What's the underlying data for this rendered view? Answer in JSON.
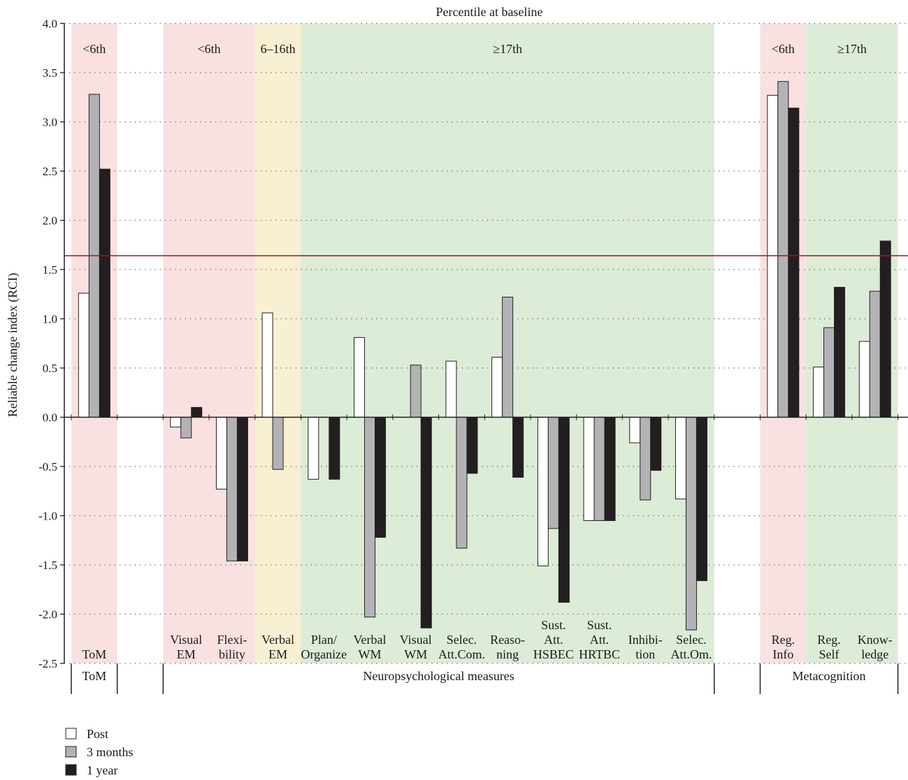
{
  "chart_data": {
    "type": "bar",
    "title": "Percentile at baseline",
    "ylabel": "Reliable change index (RCI)",
    "ylim": [
      -2.5,
      4.0
    ],
    "yticks": [
      4.0,
      3.5,
      3.0,
      2.5,
      2.0,
      1.5,
      1.0,
      0.5,
      0.0,
      -0.5,
      -1.0,
      -1.5,
      -2.0,
      -2.5
    ],
    "ytick_labels": [
      "4.0",
      "3.5",
      "3.0",
      "2.5",
      "2.0",
      "1.5",
      "1.0",
      "0.5",
      "0.0",
      "-0.5",
      "-1.0",
      "-1.5",
      "-2.0",
      "-2.5"
    ],
    "threshold": 1.64,
    "grid": "dotted horizontal",
    "legend_position": "bottom-left",
    "categories": [
      {
        "lines": [
          "ToM"
        ]
      },
      {
        "lines": []
      },
      {
        "lines": [
          "Visual",
          "EM"
        ]
      },
      {
        "lines": [
          "Flexi-",
          "bility"
        ]
      },
      {
        "lines": [
          "Verbal",
          "EM"
        ]
      },
      {
        "lines": [
          "Plan/",
          "Organize"
        ]
      },
      {
        "lines": [
          "Verbal",
          "WM"
        ]
      },
      {
        "lines": [
          "Visual",
          "WM"
        ]
      },
      {
        "lines": [
          "Selec.",
          "Att.Com."
        ]
      },
      {
        "lines": [
          "Reaso-",
          "ning"
        ]
      },
      {
        "lines": [
          "Sust.",
          "Att.",
          "HSBEC"
        ]
      },
      {
        "lines": [
          "Sust.",
          "Att.",
          "HRTBC"
        ]
      },
      {
        "lines": [
          "Inhibi-",
          "tion"
        ]
      },
      {
        "lines": [
          "Selec.",
          "Att.Om."
        ]
      },
      {
        "lines": []
      },
      {
        "lines": [
          "Reg.",
          "Info"
        ]
      },
      {
        "lines": [
          "Reg.",
          "Self"
        ]
      },
      {
        "lines": [
          "Know-",
          "ledge"
        ]
      }
    ],
    "series": [
      {
        "name": "Post",
        "color": "#ffffff",
        "values": [
          1.26,
          null,
          -0.1,
          -0.73,
          1.06,
          -0.63,
          0.81,
          0,
          0.57,
          0.61,
          -1.51,
          -1.05,
          -0.26,
          -0.83,
          null,
          3.27,
          0.51,
          0.77
        ]
      },
      {
        "name": "3 months",
        "color": "#b3b3b6",
        "values": [
          3.28,
          null,
          -0.21,
          -1.46,
          -0.53,
          0,
          -2.03,
          0.53,
          -1.33,
          1.22,
          -1.13,
          -1.05,
          -0.84,
          -2.16,
          null,
          3.41,
          0.91,
          1.28
        ]
      },
      {
        "name": "1 year",
        "color": "#231f20",
        "values": [
          2.52,
          null,
          0.1,
          -1.46,
          0,
          -0.63,
          -1.22,
          -2.14,
          -0.57,
          -0.61,
          -1.88,
          -1.05,
          -0.54,
          -1.66,
          null,
          3.14,
          1.32,
          1.79
        ]
      }
    ],
    "bands": [
      {
        "label": "<6th",
        "color": "#f9e1e1",
        "from": 0,
        "to": 0
      },
      {
        "label": "<6th",
        "color": "#f9e1e1",
        "from": 2,
        "to": 3
      },
      {
        "label": "6–16th",
        "color": "#f8f0d2",
        "from": 4,
        "to": 4
      },
      {
        "label": "≥17th",
        "color": "#dcecd7",
        "from": 5,
        "to": 13
      },
      {
        "label": "<6th",
        "color": "#f9e1e1",
        "from": 15,
        "to": 15
      },
      {
        "label": "≥17th",
        "color": "#dcecd7",
        "from": 16,
        "to": 17
      }
    ],
    "groups": [
      {
        "label": "ToM",
        "from": 0,
        "to": 0
      },
      {
        "label": "Neuropsychological measures",
        "from": 2,
        "to": 13
      },
      {
        "label": "Metacognition",
        "from": 15,
        "to": 17
      }
    ]
  }
}
